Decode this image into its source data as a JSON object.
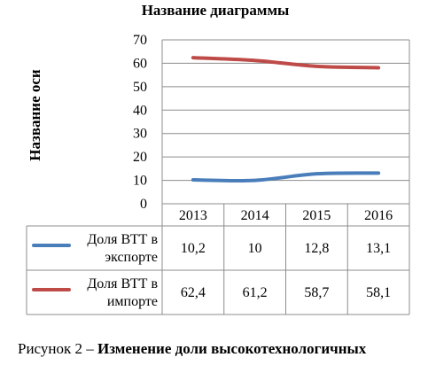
{
  "chart_data": {
    "type": "line",
    "title": "Название диаграммы",
    "ylabel": "Название оси",
    "xlabel": "",
    "ylim": [
      0,
      70
    ],
    "yticks": [
      0,
      10,
      20,
      30,
      40,
      50,
      60,
      70
    ],
    "categories": [
      "2013",
      "2014",
      "2015",
      "2016"
    ],
    "grid": true,
    "legend": "data-table",
    "series": [
      {
        "name": "Доля ВТТ в экспорте",
        "name_lines": [
          "Доля ВТТ в",
          "экспорте"
        ],
        "values": [
          10.2,
          10,
          12.8,
          13.1
        ],
        "labels": [
          "10,2",
          "10",
          "12,8",
          "13,1"
        ],
        "color": "#4a7ebb"
      },
      {
        "name": "Доля ВТТ в импорте",
        "name_lines": [
          "Доля ВТТ в",
          "импорте"
        ],
        "values": [
          62.4,
          61.2,
          58.7,
          58.1
        ],
        "labels": [
          "62,4",
          "61,2",
          "58,7",
          "58,1"
        ],
        "color": "#be4b48"
      }
    ]
  },
  "caption": {
    "prefix": "Рисунок 2 – ",
    "bold": "Изменение доли высокотехнологичных"
  }
}
